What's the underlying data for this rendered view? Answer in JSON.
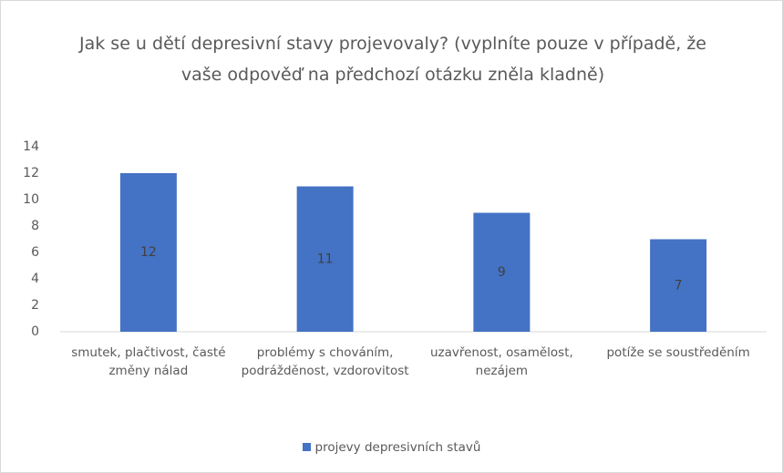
{
  "chart_data": {
    "type": "bar",
    "title": "Jak se u dětí depresivní stavy projevovaly? (vyplníte pouze v případě, že vaše odpověď na předchozí otázku zněla kladně)",
    "categories": [
      "smutek, plačtivost, časté změny nálad",
      "problémy s chováním, podrážděnost, vzdorovitost",
      "uzavřenost, osamělost, nezájem",
      "potíže se soustředěním"
    ],
    "series": [
      {
        "name": "projevy depresivních stavů",
        "color": "#4472c4",
        "values": [
          12,
          11,
          9,
          7
        ]
      }
    ],
    "ylim": [
      0,
      14
    ],
    "yticks": [
      0,
      2,
      4,
      6,
      8,
      10,
      12,
      14
    ],
    "grid": false,
    "legend": "bottom"
  }
}
